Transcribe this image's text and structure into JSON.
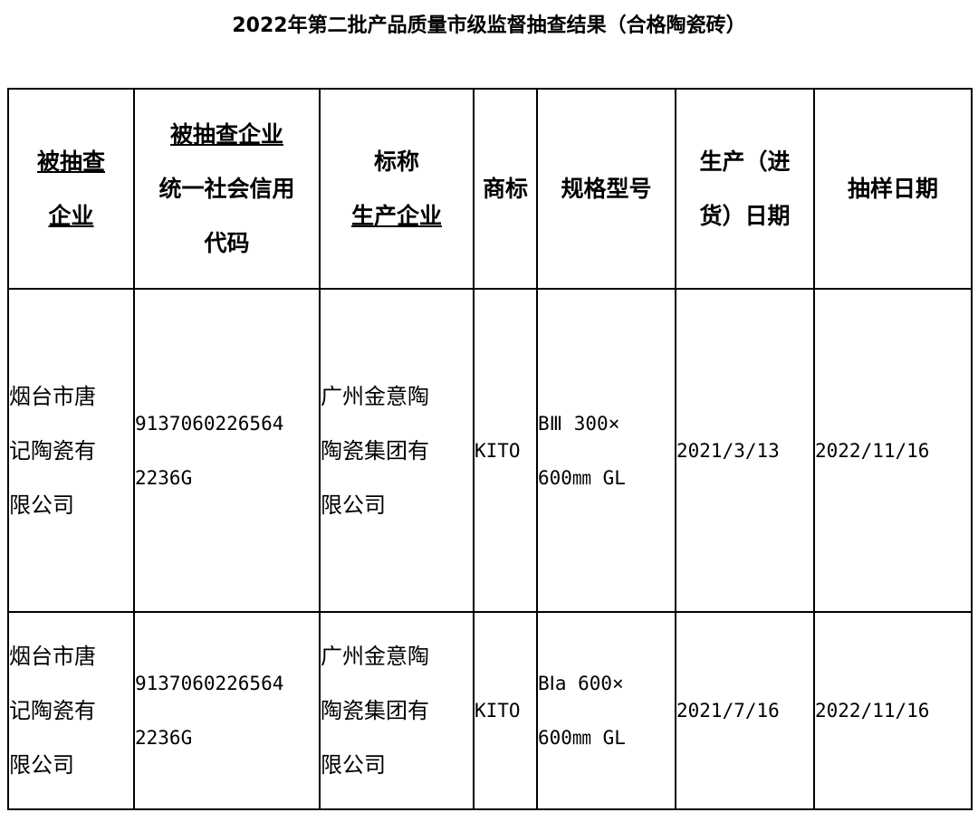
{
  "title": "2022年第二批产品质量市级监督抽查结果（合格陶瓷砖）",
  "headers": [
    {
      "lines": [
        "被抽查",
        "企业"
      ],
      "underline": [
        true,
        true
      ]
    },
    {
      "lines": [
        "被抽查企业",
        "统一社会信用",
        "代码"
      ],
      "underline": [
        true,
        false,
        false
      ]
    },
    {
      "lines": [
        "标称",
        "生产企业"
      ],
      "underline": [
        false,
        true
      ]
    },
    {
      "lines": [
        "商标"
      ],
      "underline": [
        false
      ]
    },
    {
      "lines": [
        "规格型号"
      ],
      "underline": [
        false
      ]
    },
    {
      "lines": [
        "生产（进",
        "货）日期"
      ],
      "underline": [
        false,
        false
      ]
    },
    {
      "lines": [
        "抽样日期"
      ],
      "underline": [
        false
      ]
    }
  ],
  "rows": [
    {
      "company": [
        "烟台市唐",
        "记陶瓷有",
        "限公司"
      ],
      "credit_code": [
        "9137060226564",
        "2236G"
      ],
      "manufacturer": [
        "广州金意陶",
        "陶瓷集团有",
        "限公司"
      ],
      "trademark": "KITO",
      "spec": [
        "BⅢ 300×",
        "600㎜ GL"
      ],
      "production_date": "2021/3/13",
      "sampling_date": "2022/11/16"
    },
    {
      "company": [
        "烟台市唐",
        "记陶瓷有",
        "限公司"
      ],
      "credit_code": [
        "9137060226564",
        "2236G"
      ],
      "manufacturer": [
        "广州金意陶",
        "陶瓷集团有",
        "限公司"
      ],
      "trademark": "KITO",
      "spec": [
        "BⅠa 600×",
        "600㎜ GL"
      ],
      "production_date": "2021/7/16",
      "sampling_date": "2022/11/16"
    }
  ]
}
